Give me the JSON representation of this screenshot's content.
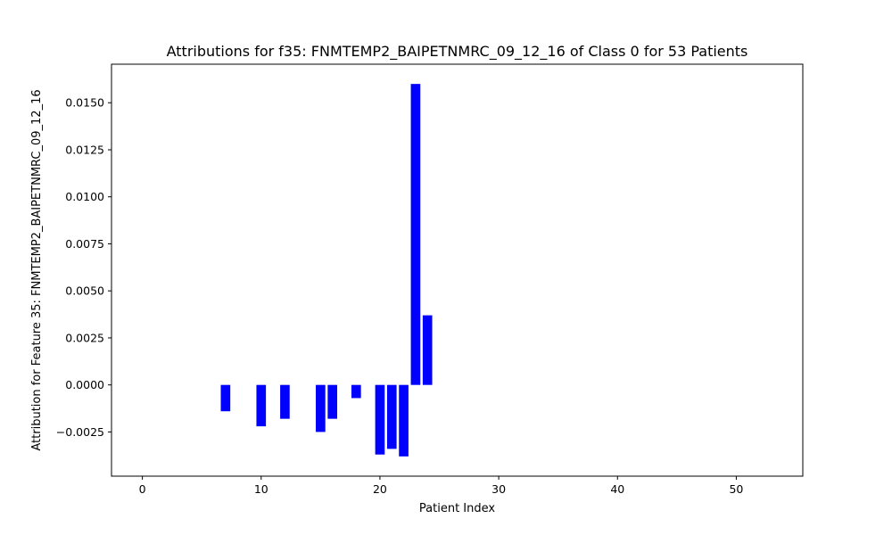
{
  "chart_data": {
    "type": "bar",
    "title": "Attributions for f35: FNMTEMP2_BAIPETNMRC_09_12_16 of Class 0 for 53 Patients",
    "xlabel": "Patient Index",
    "ylabel": "Attribution for Feature 35: FNMTEMP2_BAIPETNMRC_09_12_16",
    "x": [
      0,
      1,
      2,
      3,
      4,
      5,
      6,
      7,
      8,
      9,
      10,
      11,
      12,
      13,
      14,
      15,
      16,
      17,
      18,
      19,
      20,
      21,
      22,
      23,
      24,
      25,
      26,
      27,
      28,
      29,
      30,
      31,
      32,
      33,
      34,
      35,
      36,
      37,
      38,
      39,
      40,
      41,
      42,
      43,
      44,
      45,
      46,
      47,
      48,
      49,
      50,
      51,
      52
    ],
    "values": [
      0,
      0,
      0,
      0,
      0,
      0,
      0,
      -0.0014,
      0,
      0,
      -0.0022,
      0,
      -0.0018,
      0,
      0,
      -0.0025,
      -0.0018,
      0,
      -0.0007,
      0,
      -0.0037,
      -0.0034,
      -0.0038,
      0.016,
      0.0037,
      0,
      0,
      0,
      0,
      0,
      0,
      0,
      0,
      0,
      0,
      0,
      0,
      0,
      0,
      0,
      0,
      0,
      0,
      0,
      0,
      0,
      0,
      0,
      0,
      0,
      0,
      0,
      0
    ],
    "xlim": [
      -2.6,
      55.6
    ],
    "ylim": [
      -0.00485,
      0.01705
    ],
    "xticks": [
      0,
      10,
      20,
      30,
      40,
      50
    ],
    "xtick_labels": [
      "0",
      "10",
      "20",
      "30",
      "40",
      "50"
    ],
    "yticks": [
      -0.0025,
      0.0,
      0.0025,
      0.005,
      0.0075,
      0.01,
      0.0125,
      0.015
    ],
    "ytick_labels": [
      "−0.0025",
      "0.0000",
      "0.0025",
      "0.0050",
      "0.0075",
      "0.0100",
      "0.0125",
      "0.0150"
    ],
    "bar_color": "#0000ff",
    "grid": false,
    "legend": "none"
  }
}
